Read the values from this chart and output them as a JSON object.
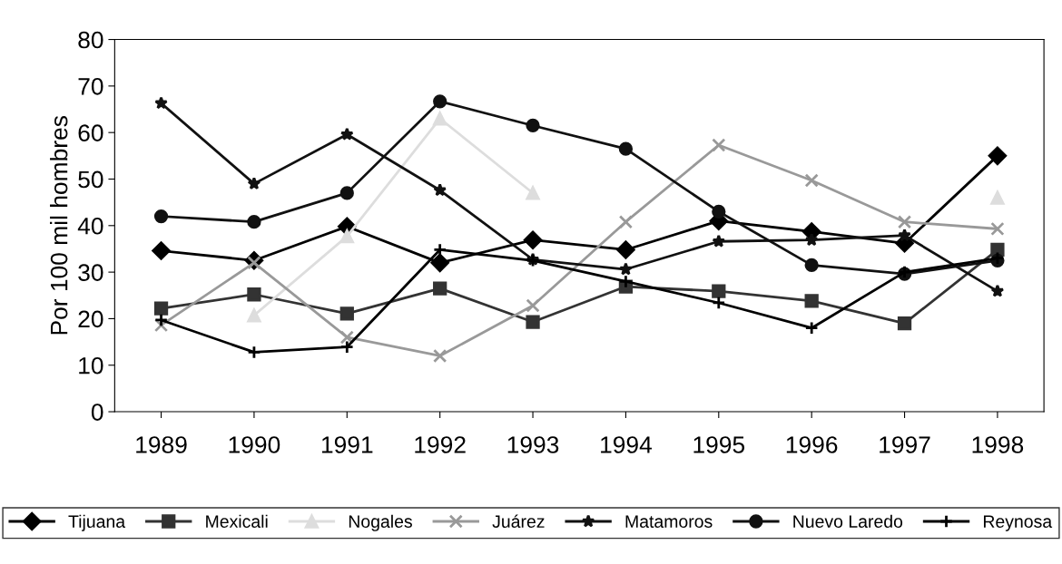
{
  "chart_data": {
    "type": "line",
    "ylabel": "Por 100 mil hombres",
    "categories": [
      "1989",
      "1990",
      "1991",
      "1992",
      "1993",
      "1994",
      "1995",
      "1996",
      "1997",
      "1998"
    ],
    "ylim": [
      0,
      80
    ],
    "yticks": [
      0,
      10,
      20,
      30,
      40,
      50,
      60,
      70,
      80
    ],
    "grid": false,
    "legend": "bottom",
    "line_style": "solid",
    "series": [
      {
        "name": "Tijuana",
        "color": "#000000",
        "marker": "diamond",
        "values": [
          34.6,
          32.5,
          39.8,
          32,
          36.9,
          34.8,
          41,
          38.7,
          36.2,
          55
        ]
      },
      {
        "name": "Mexicali",
        "color": "#333333",
        "marker": "square",
        "values": [
          22.2,
          25.2,
          21.1,
          26.5,
          19.3,
          26.9,
          25.9,
          23.8,
          19,
          34.8
        ]
      },
      {
        "name": "Nogales",
        "color": "#dddddd",
        "marker": "triangle",
        "values": [
          null,
          20.7,
          37.7,
          63,
          47,
          null,
          null,
          null,
          null,
          46
        ]
      },
      {
        "name": "Juárez",
        "color": "#999999",
        "marker": "x",
        "values": [
          18.6,
          32,
          16,
          12,
          22.8,
          40.8,
          57.3,
          49.7,
          40.8,
          39.3
        ]
      },
      {
        "name": "Matamoros",
        "color": "#111111",
        "marker": "star",
        "values": [
          66.3,
          49,
          59.6,
          47.6,
          32.7,
          30.6,
          36.6,
          36.9,
          37.9,
          25.9
        ]
      },
      {
        "name": "Nuevo Laredo",
        "color": "#111111",
        "marker": "circle",
        "values": [
          42,
          40.8,
          47,
          66.7,
          61.5,
          56.5,
          43,
          31.5,
          29.6,
          32.5
        ]
      },
      {
        "name": "Reynosa",
        "color": "#000000",
        "marker": "cross",
        "values": [
          19.7,
          12.8,
          13.9,
          34.8,
          32.5,
          28,
          23.4,
          18,
          30,
          33
        ]
      }
    ]
  }
}
